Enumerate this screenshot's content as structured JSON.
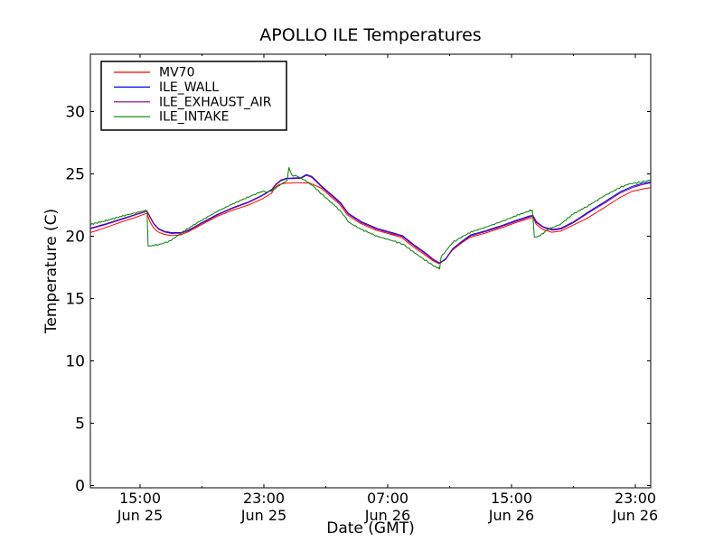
{
  "figure": {
    "title": "APOLLO ILE Temperatures"
  },
  "chart_data": {
    "type": "line",
    "title": "APOLLO ILE Temperatures",
    "xlabel": "Date (GMT)",
    "ylabel": "Temperature (C)",
    "x_unit_hours_since": "Jun 25 12:00 GMT",
    "xlim_hours": [
      -0.2,
      36.0
    ],
    "ylim": [
      0,
      34.6
    ],
    "y_ticks": [
      0,
      5,
      10,
      15,
      20,
      25,
      30
    ],
    "x_major_ticks": [
      {
        "t": 3,
        "time": "15:00",
        "date": "Jun 25"
      },
      {
        "t": 11,
        "time": "23:00",
        "date": "Jun 25"
      },
      {
        "t": 19,
        "time": "07:00",
        "date": "Jun 26"
      },
      {
        "t": 27,
        "time": "15:00",
        "date": "Jun 26"
      },
      {
        "t": 35,
        "time": "23:00",
        "date": "Jun 26"
      }
    ],
    "x_minor_ticks": [
      7,
      15,
      23,
      31
    ],
    "grid": false,
    "legend_position": "upper left",
    "frame_color": "#000000",
    "background": "#ffffff",
    "series": [
      {
        "name": "MV70",
        "color": "#ff0000",
        "noise": 0.0,
        "points": [
          [
            -0.2,
            20.3
          ],
          [
            0.8,
            20.7
          ],
          [
            1.8,
            21.15
          ],
          [
            2.8,
            21.55
          ],
          [
            3.45,
            21.85
          ],
          [
            3.62,
            21.2
          ],
          [
            3.85,
            20.7
          ],
          [
            4.15,
            20.35
          ],
          [
            4.55,
            20.15
          ],
          [
            5.0,
            20.05
          ],
          [
            5.6,
            20.1
          ],
          [
            6.1,
            20.35
          ],
          [
            7.0,
            20.95
          ],
          [
            8.0,
            21.6
          ],
          [
            9.0,
            22.1
          ],
          [
            10.0,
            22.5
          ],
          [
            10.9,
            23.0
          ],
          [
            11.5,
            23.45
          ],
          [
            11.7,
            23.9
          ],
          [
            12.0,
            24.15
          ],
          [
            12.4,
            24.25
          ],
          [
            13.3,
            24.3
          ],
          [
            14.0,
            24.25
          ],
          [
            14.7,
            23.85
          ],
          [
            15.4,
            23.1
          ],
          [
            15.9,
            22.55
          ],
          [
            16.4,
            21.7
          ],
          [
            17.2,
            21.05
          ],
          [
            18.2,
            20.5
          ],
          [
            19.2,
            20.15
          ],
          [
            19.9,
            19.9
          ],
          [
            20.6,
            19.2
          ],
          [
            21.3,
            18.6
          ],
          [
            21.9,
            18.05
          ],
          [
            22.3,
            17.8
          ],
          [
            22.7,
            18.1
          ],
          [
            23.15,
            18.85
          ],
          [
            23.7,
            19.4
          ],
          [
            24.3,
            19.9
          ],
          [
            25.3,
            20.25
          ],
          [
            26.3,
            20.65
          ],
          [
            27.3,
            21.1
          ],
          [
            28.05,
            21.4
          ],
          [
            28.38,
            21.5
          ],
          [
            28.6,
            20.95
          ],
          [
            29.0,
            20.55
          ],
          [
            29.6,
            20.32
          ],
          [
            30.15,
            20.4
          ],
          [
            31.0,
            20.9
          ],
          [
            31.9,
            21.45
          ],
          [
            33.0,
            22.3
          ],
          [
            34.0,
            23.1
          ],
          [
            34.8,
            23.6
          ],
          [
            35.5,
            23.8
          ],
          [
            36.0,
            23.9
          ]
        ]
      },
      {
        "name": "ILE_WALL",
        "color": "#0000ff",
        "noise": 0.0,
        "points": [
          [
            -0.2,
            20.6
          ],
          [
            0.8,
            20.95
          ],
          [
            1.8,
            21.35
          ],
          [
            2.8,
            21.75
          ],
          [
            3.45,
            22.0
          ],
          [
            3.67,
            21.5
          ],
          [
            3.9,
            21.0
          ],
          [
            4.2,
            20.6
          ],
          [
            4.6,
            20.38
          ],
          [
            5.05,
            20.28
          ],
          [
            5.65,
            20.3
          ],
          [
            6.15,
            20.5
          ],
          [
            7.0,
            21.1
          ],
          [
            8.0,
            21.75
          ],
          [
            9.0,
            22.3
          ],
          [
            10.0,
            22.75
          ],
          [
            10.9,
            23.3
          ],
          [
            11.5,
            23.75
          ],
          [
            11.8,
            24.2
          ],
          [
            12.1,
            24.5
          ],
          [
            12.45,
            24.65
          ],
          [
            13.4,
            24.7
          ],
          [
            13.75,
            24.95
          ],
          [
            14.1,
            24.8
          ],
          [
            14.75,
            24.0
          ],
          [
            15.45,
            23.25
          ],
          [
            15.95,
            22.7
          ],
          [
            16.45,
            21.85
          ],
          [
            17.25,
            21.2
          ],
          [
            18.25,
            20.65
          ],
          [
            19.25,
            20.3
          ],
          [
            19.95,
            20.05
          ],
          [
            20.65,
            19.35
          ],
          [
            21.35,
            18.75
          ],
          [
            21.95,
            18.15
          ],
          [
            22.35,
            17.85
          ],
          [
            22.75,
            18.2
          ],
          [
            23.2,
            19.0
          ],
          [
            23.75,
            19.55
          ],
          [
            24.35,
            20.1
          ],
          [
            25.35,
            20.45
          ],
          [
            26.35,
            20.85
          ],
          [
            27.35,
            21.3
          ],
          [
            28.1,
            21.6
          ],
          [
            28.38,
            21.68
          ],
          [
            28.62,
            21.15
          ],
          [
            29.05,
            20.75
          ],
          [
            29.65,
            20.55
          ],
          [
            30.2,
            20.65
          ],
          [
            31.0,
            21.15
          ],
          [
            31.9,
            21.9
          ],
          [
            33.0,
            22.75
          ],
          [
            34.0,
            23.55
          ],
          [
            34.8,
            24.0
          ],
          [
            35.5,
            24.25
          ],
          [
            36.0,
            24.35
          ]
        ]
      },
      {
        "name": "ILE_EXHAUST_AIR",
        "color": "#800080",
        "noise": 0.0,
        "points": [
          [
            -0.2,
            20.65
          ],
          [
            0.8,
            21.0
          ],
          [
            1.8,
            21.4
          ],
          [
            2.8,
            21.78
          ],
          [
            3.45,
            22.02
          ],
          [
            3.67,
            21.45
          ],
          [
            3.9,
            20.95
          ],
          [
            4.2,
            20.55
          ],
          [
            4.6,
            20.33
          ],
          [
            5.05,
            20.22
          ],
          [
            5.65,
            20.25
          ],
          [
            6.15,
            20.45
          ],
          [
            7.0,
            21.05
          ],
          [
            8.0,
            21.7
          ],
          [
            9.0,
            22.25
          ],
          [
            10.0,
            22.7
          ],
          [
            10.9,
            23.25
          ],
          [
            11.5,
            23.7
          ],
          [
            11.8,
            24.15
          ],
          [
            12.1,
            24.45
          ],
          [
            12.45,
            24.6
          ],
          [
            13.4,
            24.65
          ],
          [
            13.75,
            24.88
          ],
          [
            14.1,
            24.72
          ],
          [
            14.75,
            23.92
          ],
          [
            15.45,
            23.18
          ],
          [
            15.95,
            22.62
          ],
          [
            16.45,
            21.78
          ],
          [
            17.25,
            21.12
          ],
          [
            18.25,
            20.58
          ],
          [
            19.25,
            20.22
          ],
          [
            19.95,
            19.98
          ],
          [
            20.65,
            19.28
          ],
          [
            21.35,
            18.68
          ],
          [
            21.95,
            18.1
          ],
          [
            22.35,
            17.82
          ],
          [
            22.75,
            18.15
          ],
          [
            23.2,
            18.95
          ],
          [
            23.75,
            19.5
          ],
          [
            24.35,
            20.02
          ],
          [
            25.35,
            20.38
          ],
          [
            26.35,
            20.78
          ],
          [
            27.35,
            21.22
          ],
          [
            28.1,
            21.52
          ],
          [
            28.38,
            21.62
          ],
          [
            28.62,
            21.08
          ],
          [
            29.05,
            20.7
          ],
          [
            29.65,
            20.48
          ],
          [
            30.2,
            20.58
          ],
          [
            31.0,
            21.08
          ],
          [
            31.9,
            21.82
          ],
          [
            33.0,
            22.65
          ],
          [
            34.0,
            23.45
          ],
          [
            34.8,
            23.9
          ],
          [
            35.5,
            24.15
          ],
          [
            36.0,
            24.28
          ]
        ]
      },
      {
        "name": "ILE_INTAKE",
        "color": "#008000",
        "noise": 0.08,
        "points": [
          [
            -0.2,
            20.95
          ],
          [
            0.8,
            21.25
          ],
          [
            1.8,
            21.6
          ],
          [
            2.8,
            21.9
          ],
          [
            3.45,
            22.1
          ],
          [
            3.52,
            19.2
          ],
          [
            4.3,
            19.35
          ],
          [
            4.9,
            19.6
          ],
          [
            5.5,
            20.1
          ],
          [
            6.0,
            20.55
          ],
          [
            7.0,
            21.3
          ],
          [
            8.0,
            22.0
          ],
          [
            9.0,
            22.6
          ],
          [
            10.0,
            23.15
          ],
          [
            10.9,
            23.6
          ],
          [
            11.3,
            23.55
          ],
          [
            11.7,
            23.8
          ],
          [
            12.2,
            24.25
          ],
          [
            12.5,
            24.45
          ],
          [
            12.62,
            25.5
          ],
          [
            12.8,
            24.9
          ],
          [
            13.2,
            24.8
          ],
          [
            13.7,
            24.45
          ],
          [
            14.2,
            24.0
          ],
          [
            14.8,
            23.3
          ],
          [
            15.5,
            22.55
          ],
          [
            16.0,
            21.95
          ],
          [
            16.5,
            21.1
          ],
          [
            17.3,
            20.55
          ],
          [
            18.3,
            20.0
          ],
          [
            19.3,
            19.65
          ],
          [
            20.0,
            19.35
          ],
          [
            20.7,
            18.7
          ],
          [
            21.4,
            18.1
          ],
          [
            22.0,
            17.6
          ],
          [
            22.35,
            17.4
          ],
          [
            22.45,
            18.35
          ],
          [
            23.2,
            19.5
          ],
          [
            23.8,
            19.95
          ],
          [
            24.4,
            20.35
          ],
          [
            25.4,
            20.75
          ],
          [
            26.4,
            21.2
          ],
          [
            27.4,
            21.7
          ],
          [
            28.1,
            22.0
          ],
          [
            28.35,
            22.1
          ],
          [
            28.48,
            19.9
          ],
          [
            28.85,
            20.05
          ],
          [
            29.35,
            20.55
          ],
          [
            30.15,
            20.95
          ],
          [
            31.0,
            21.8
          ],
          [
            31.9,
            22.4
          ],
          [
            33.0,
            23.25
          ],
          [
            34.0,
            23.9
          ],
          [
            34.6,
            24.2
          ],
          [
            35.2,
            24.3
          ],
          [
            36.0,
            24.5
          ]
        ]
      }
    ]
  }
}
